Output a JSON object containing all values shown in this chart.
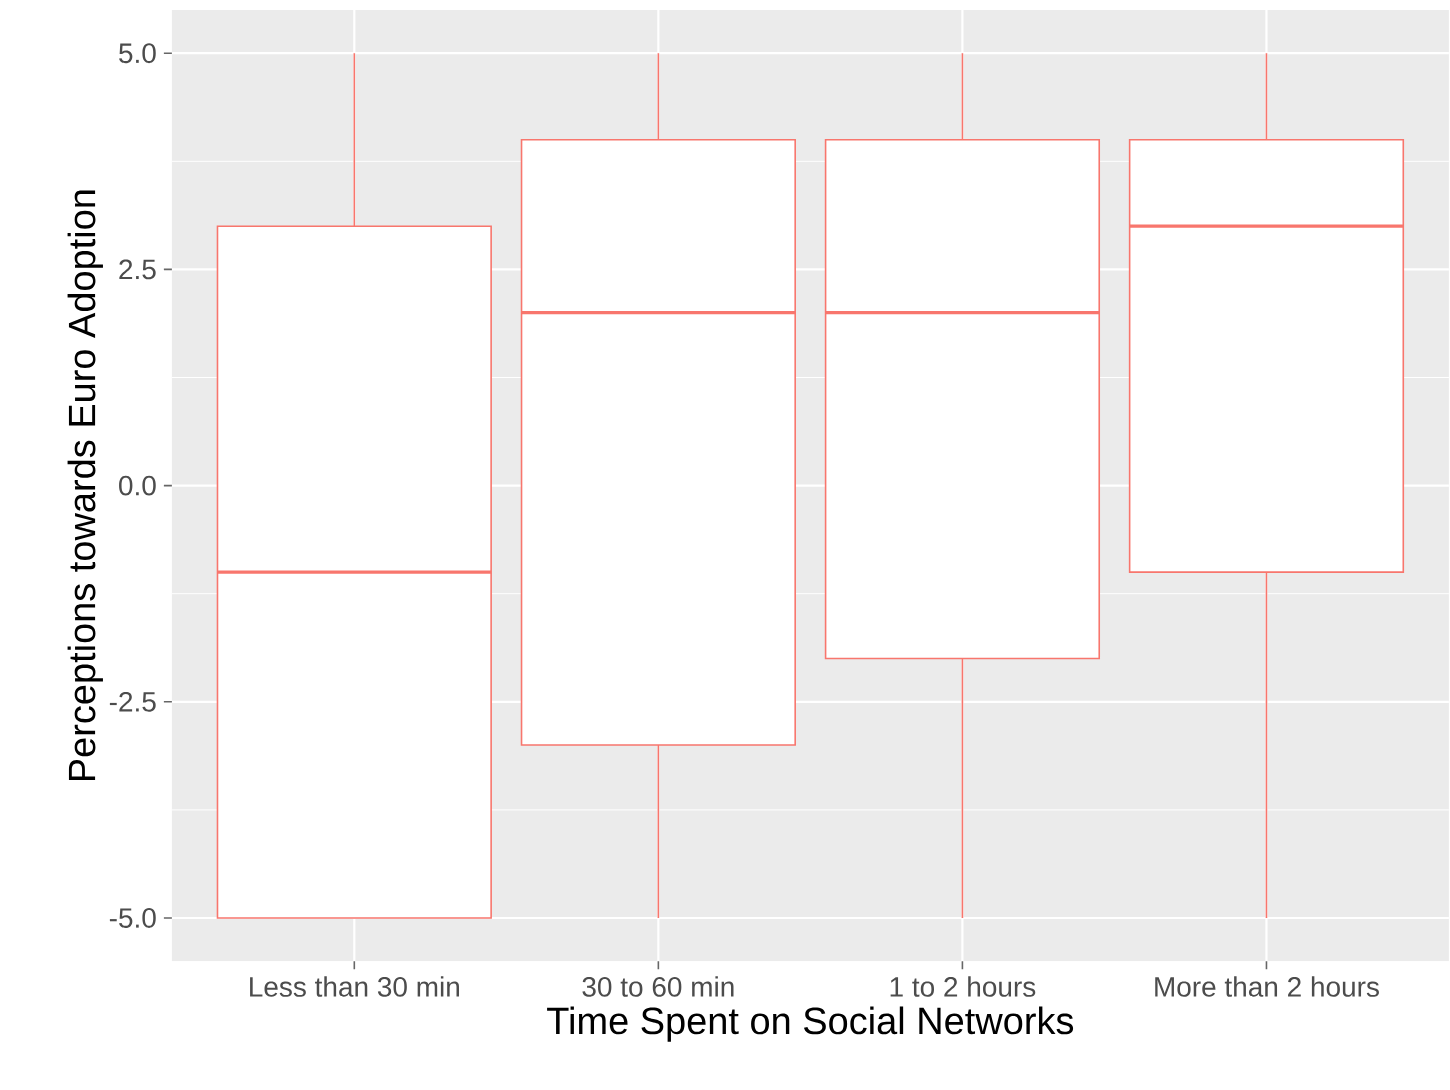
{
  "chart_data": {
    "type": "box",
    "xlabel": "Time Spent on Social Networks",
    "ylabel": "Perceptions towards Euro Adoption",
    "categories": [
      "Less than 30 min",
      "30 to 60 min",
      "1 to 2 hours",
      "More than 2 hours"
    ],
    "boxes": [
      {
        "low": -5,
        "q1": -5,
        "median": -1,
        "q3": 3,
        "high": 5
      },
      {
        "low": -5,
        "q1": -3,
        "median": 2,
        "q3": 4,
        "high": 5
      },
      {
        "low": -5,
        "q1": -2,
        "median": 2,
        "q3": 4,
        "high": 5
      },
      {
        "low": -5,
        "q1": -1,
        "median": 3,
        "q3": 4,
        "high": 5
      }
    ],
    "color": "#f8766d",
    "ylim": [
      -5.5,
      5.5
    ],
    "yticks": [
      {
        "value": -5,
        "label": "-5.0"
      },
      {
        "value": -2.5,
        "label": "-2.5"
      },
      {
        "value": 0,
        "label": "0.0"
      },
      {
        "value": 2.5,
        "label": "2.5"
      },
      {
        "value": 5,
        "label": "5.0"
      }
    ],
    "grid": true
  }
}
